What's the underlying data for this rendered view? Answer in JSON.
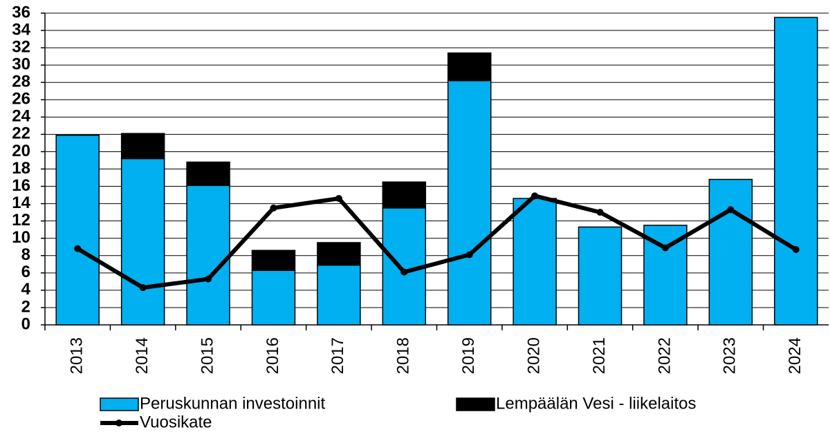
{
  "chart_data": {
    "type": "bar",
    "categories": [
      "2013",
      "2014",
      "2015",
      "2016",
      "2017",
      "2018",
      "2019",
      "2020",
      "2021",
      "2022",
      "2023",
      "2024"
    ],
    "series": [
      {
        "name": "Peruskunnan investoinnit",
        "color": "#00b0f0",
        "values": [
          21.9,
          19.2,
          16.1,
          6.3,
          6.9,
          13.5,
          28.2,
          14.6,
          11.3,
          11.5,
          16.8,
          35.5
        ]
      },
      {
        "name": "Lempäälän Vesi - liikelaitos",
        "color": "#000000",
        "values": [
          0,
          2.9,
          2.7,
          2.3,
          2.6,
          3.0,
          3.2,
          0,
          0,
          0,
          0,
          0
        ]
      },
      {
        "name": "Vuosikate",
        "type": "line",
        "color": "#000000",
        "values": [
          8.8,
          4.3,
          5.3,
          13.5,
          14.6,
          6.1,
          8.1,
          14.9,
          13.0,
          8.9,
          13.3,
          8.7
        ]
      }
    ],
    "stacked": true,
    "ylim": [
      0,
      36
    ],
    "yticks": [
      0,
      2,
      4,
      6,
      8,
      10,
      12,
      14,
      16,
      18,
      20,
      22,
      24,
      26,
      28,
      30,
      32,
      34,
      36
    ],
    "grid": true
  }
}
